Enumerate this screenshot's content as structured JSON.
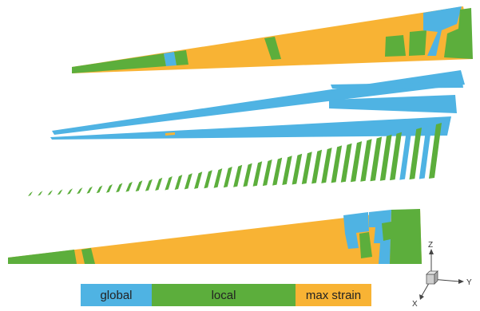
{
  "colors": {
    "global": "#4fb3e3",
    "local": "#5cae3c",
    "max_strain": "#f8b334"
  },
  "legend": {
    "global": "global",
    "local": "local",
    "max_strain": "max strain"
  },
  "triad": {
    "z": "Z",
    "y": "Y",
    "x": "X"
  }
}
